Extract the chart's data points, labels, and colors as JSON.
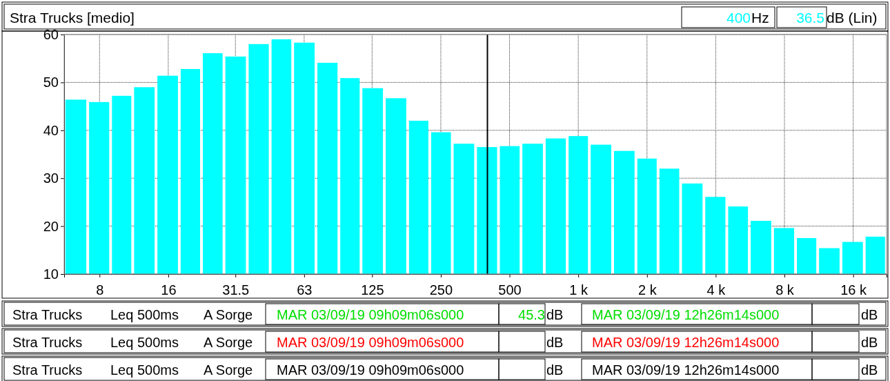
{
  "chart_data": {
    "type": "bar",
    "title": "Stra Trucks [medio]",
    "x": [
      6.3,
      8,
      10,
      12.5,
      16,
      20,
      25,
      31.5,
      40,
      50,
      63,
      80,
      100,
      125,
      160,
      200,
      250,
      315,
      400,
      500,
      630,
      800,
      1000,
      1250,
      1600,
      2000,
      2500,
      3150,
      4000,
      5000,
      6300,
      8000,
      10000,
      12500,
      16000,
      20000
    ],
    "values": [
      46.4,
      45.9,
      47.2,
      49.0,
      51.4,
      52.8,
      56.1,
      55.4,
      58.0,
      59.0,
      58.3,
      54.1,
      50.9,
      48.8,
      46.7,
      42.0,
      39.6,
      37.2,
      36.5,
      36.7,
      37.2,
      38.3,
      38.8,
      37.0,
      35.7,
      34.1,
      32.0,
      28.9,
      26.1,
      24.1,
      21.1,
      19.6,
      17.5,
      15.4,
      16.7,
      17.8
    ],
    "color": "#00ffff",
    "log": "x",
    "xlim": [
      5.6,
      22400
    ],
    "xticks": [
      8,
      16,
      31.5,
      63,
      125,
      250,
      500,
      {
        "value": 1000,
        "label": "1 k"
      },
      {
        "value": 2000,
        "label": "2 k"
      },
      {
        "value": 4000,
        "label": "4 k"
      },
      {
        "value": 8000,
        "label": "8 k"
      },
      {
        "value": 16000,
        "label": "16 k"
      }
    ],
    "ylim": [
      10,
      60
    ],
    "yticks": [
      10,
      20,
      30,
      40,
      50,
      60
    ],
    "grid": true,
    "ref_lines": [
      {
        "axis": "x",
        "value": 400,
        "color": "#000000"
      }
    ],
    "annotations": [
      "400",
      "Hz",
      "36.5",
      "dB (Lin)",
      "Stra Trucks",
      "Leq 500ms",
      "A Sorge",
      "MAR 03/09/19 09h09m06s000",
      "45.3",
      "dB",
      "MAR 03/09/19 12h26m14s000",
      "dB",
      "Stra Trucks",
      "Leq 500ms",
      "A Sorge",
      "MAR 03/09/19 09h09m06s000",
      "dB",
      "MAR 03/09/19 12h26m14s000",
      "dB",
      "Stra Trucks",
      "Leq 500ms",
      "A Sorge",
      "MAR 03/09/19 09h09m06s000",
      "dB",
      "MAR 03/09/19 12h26m14s000",
      "dB"
    ]
  }
}
